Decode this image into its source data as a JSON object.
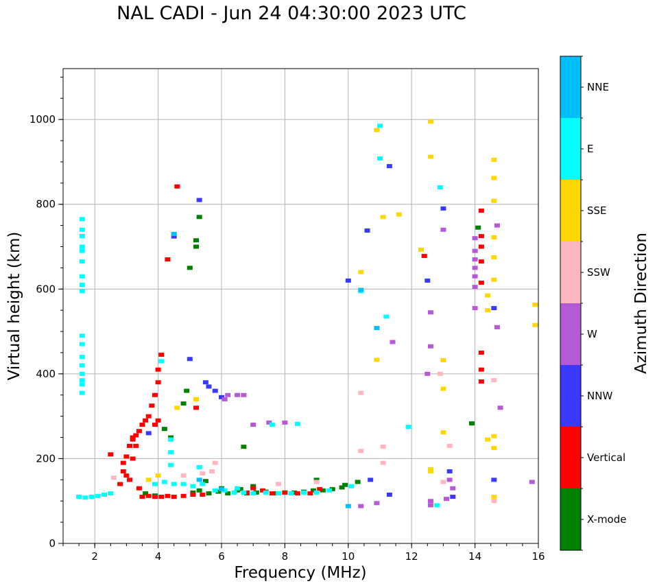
{
  "chart_data": {
    "type": "scatter",
    "title": "NAL CADI - Jun 24 04:30:00 2023 UTC",
    "xlabel": "Frequency (MHz)",
    "ylabel": "Virtual height (km)",
    "xlim": [
      1,
      16
    ],
    "ylim": [
      0,
      1120
    ],
    "xticks": [
      2,
      4,
      6,
      8,
      10,
      12,
      14,
      16
    ],
    "yticks": [
      0,
      200,
      400,
      600,
      800,
      1000
    ],
    "grid": true,
    "colorbar": {
      "label": "Azimuth Direction",
      "categories": [
        {
          "name": "X-mode",
          "color": "#008000"
        },
        {
          "name": "Vertical",
          "color": "#ff0000"
        },
        {
          "name": "NNW",
          "color": "#3a3aff"
        },
        {
          "name": "W",
          "color": "#b659d6"
        },
        {
          "name": "SSW",
          "color": "#ffb6c1"
        },
        {
          "name": "SSE",
          "color": "#ffd700"
        },
        {
          "name": "E",
          "color": "#00ffff"
        },
        {
          "name": "NNE",
          "color": "#00bfff"
        }
      ]
    },
    "series": [
      {
        "name": "X-mode",
        "points": [
          [
            5.1,
            120
          ],
          [
            5.3,
            125
          ],
          [
            5.6,
            118
          ],
          [
            5.9,
            122
          ],
          [
            6.2,
            118
          ],
          [
            6.5,
            125
          ],
          [
            6.8,
            118
          ],
          [
            7.1,
            120
          ],
          [
            7.4,
            122
          ],
          [
            7.7,
            118
          ],
          [
            8.0,
            120
          ],
          [
            8.3,
            120
          ],
          [
            8.6,
            122
          ],
          [
            8.9,
            125
          ],
          [
            9.2,
            125
          ],
          [
            9.5,
            128
          ],
          [
            9.8,
            132
          ],
          [
            9.9,
            138
          ],
          [
            10.3,
            145
          ],
          [
            5.2,
            700
          ],
          [
            5.2,
            715
          ],
          [
            5.3,
            770
          ],
          [
            5.0,
            650
          ],
          [
            4.9,
            360
          ],
          [
            4.8,
            330
          ],
          [
            4.4,
            250
          ],
          [
            4.2,
            270
          ],
          [
            6.7,
            228
          ],
          [
            6.0,
            130
          ],
          [
            6.6,
            128
          ],
          [
            7.0,
            135
          ],
          [
            9.0,
            150
          ],
          [
            14.1,
            745
          ],
          [
            13.9,
            283
          ],
          [
            3.6,
            118
          ],
          [
            3.9,
            113
          ],
          [
            5.5,
            147
          ]
        ]
      },
      {
        "name": "Vertical",
        "points": [
          [
            3.1,
            230
          ],
          [
            3.2,
            245
          ],
          [
            3.3,
            255
          ],
          [
            3.4,
            265
          ],
          [
            3.5,
            280
          ],
          [
            3.6,
            290
          ],
          [
            3.7,
            300
          ],
          [
            3.8,
            325
          ],
          [
            3.9,
            350
          ],
          [
            4.0,
            380
          ],
          [
            4.0,
            410
          ],
          [
            4.1,
            445
          ],
          [
            4.0,
            290
          ],
          [
            3.9,
            280
          ],
          [
            3.0,
            160
          ],
          [
            3.1,
            150
          ],
          [
            2.9,
            170
          ],
          [
            2.8,
            140
          ],
          [
            3.5,
            110
          ],
          [
            3.7,
            112
          ],
          [
            3.9,
            110
          ],
          [
            4.1,
            110
          ],
          [
            4.3,
            112
          ],
          [
            4.5,
            110
          ],
          [
            4.8,
            112
          ],
          [
            5.1,
            115
          ],
          [
            5.4,
            115
          ],
          [
            6.8,
            120
          ],
          [
            7.0,
            130
          ],
          [
            7.3,
            125
          ],
          [
            7.6,
            118
          ],
          [
            8.0,
            120
          ],
          [
            8.4,
            118
          ],
          [
            8.8,
            118
          ],
          [
            9.1,
            128
          ],
          [
            4.6,
            842
          ],
          [
            3.3,
            230
          ],
          [
            14.2,
            615
          ],
          [
            14.2,
            665
          ],
          [
            14.2,
            725
          ],
          [
            14.2,
            700
          ],
          [
            14.2,
            785
          ],
          [
            14.2,
            450
          ],
          [
            14.2,
            410
          ],
          [
            14.2,
            382
          ],
          [
            12.4,
            678
          ],
          [
            3.0,
            205
          ],
          [
            2.9,
            190
          ],
          [
            3.2,
            250
          ],
          [
            2.5,
            210
          ],
          [
            4.3,
            670
          ],
          [
            5.2,
            320
          ],
          [
            3.4,
            130
          ],
          [
            3.2,
            200
          ]
        ]
      },
      {
        "name": "NNW",
        "points": [
          [
            5.5,
            380
          ],
          [
            5.6,
            370
          ],
          [
            5.8,
            360
          ],
          [
            6.0,
            345
          ],
          [
            5.0,
            435
          ],
          [
            10.0,
            620
          ],
          [
            10.6,
            738
          ],
          [
            11.3,
            890
          ],
          [
            13.0,
            790
          ],
          [
            12.5,
            620
          ],
          [
            13.2,
            170
          ],
          [
            13.3,
            110
          ],
          [
            14.6,
            555
          ],
          [
            11.3,
            115
          ],
          [
            10.7,
            150
          ],
          [
            4.5,
            724
          ],
          [
            5.3,
            810
          ],
          [
            14.6,
            150
          ],
          [
            3.7,
            260
          ]
        ]
      },
      {
        "name": "W",
        "points": [
          [
            6.2,
            350
          ],
          [
            6.5,
            350
          ],
          [
            6.7,
            350
          ],
          [
            7.0,
            280
          ],
          [
            7.5,
            285
          ],
          [
            8.0,
            285
          ],
          [
            12.6,
            545
          ],
          [
            12.6,
            465
          ],
          [
            12.5,
            400
          ],
          [
            13.0,
            740
          ],
          [
            14.0,
            720
          ],
          [
            14.0,
            690
          ],
          [
            14.0,
            670
          ],
          [
            14.0,
            650
          ],
          [
            14.0,
            630
          ],
          [
            14.0,
            605
          ],
          [
            14.0,
            555
          ],
          [
            14.7,
            750
          ],
          [
            14.7,
            510
          ],
          [
            13.2,
            150
          ],
          [
            13.3,
            130
          ],
          [
            13.1,
            105
          ],
          [
            12.6,
            100
          ],
          [
            12.6,
            90
          ],
          [
            11.4,
            475
          ],
          [
            10.4,
            88
          ],
          [
            10.9,
            95
          ],
          [
            15.8,
            145
          ],
          [
            14.8,
            320
          ],
          [
            6.1,
            340
          ]
        ]
      },
      {
        "name": "SSW",
        "points": [
          [
            5.8,
            190
          ],
          [
            5.7,
            170
          ],
          [
            5.4,
            165
          ],
          [
            10.4,
            355
          ],
          [
            10.4,
            218
          ],
          [
            11.1,
            228
          ],
          [
            11.1,
            190
          ],
          [
            12.9,
            400
          ],
          [
            13.2,
            230
          ],
          [
            13.0,
            145
          ],
          [
            14.6,
            385
          ],
          [
            14.6,
            100
          ],
          [
            2.6,
            155
          ],
          [
            4.8,
            160
          ],
          [
            9.0,
            145
          ],
          [
            7.8,
            140
          ]
        ]
      },
      {
        "name": "SSE",
        "points": [
          [
            12.6,
            995
          ],
          [
            12.6,
            912
          ],
          [
            12.3,
            693
          ],
          [
            13.0,
            432
          ],
          [
            13.0,
            365
          ],
          [
            13.0,
            262
          ],
          [
            12.6,
            175
          ],
          [
            12.6,
            170
          ],
          [
            14.6,
            905
          ],
          [
            14.6,
            862
          ],
          [
            14.6,
            808
          ],
          [
            14.6,
            722
          ],
          [
            14.6,
            675
          ],
          [
            14.6,
            622
          ],
          [
            14.4,
            585
          ],
          [
            14.4,
            550
          ],
          [
            14.6,
            253
          ],
          [
            14.6,
            225
          ],
          [
            14.4,
            245
          ],
          [
            14.6,
            110
          ],
          [
            15.9,
            563
          ],
          [
            15.9,
            515
          ],
          [
            10.9,
            975
          ],
          [
            10.9,
            433
          ],
          [
            11.1,
            770
          ],
          [
            11.6,
            776
          ],
          [
            10.4,
            640
          ],
          [
            3.7,
            150
          ],
          [
            4.0,
            160
          ],
          [
            5.2,
            340
          ],
          [
            4.6,
            320
          ]
        ]
      },
      {
        "name": "E",
        "points": [
          [
            1.6,
            765
          ],
          [
            1.6,
            740
          ],
          [
            1.6,
            725
          ],
          [
            1.6,
            700
          ],
          [
            1.6,
            690
          ],
          [
            1.6,
            665
          ],
          [
            1.6,
            630
          ],
          [
            1.6,
            610
          ],
          [
            1.6,
            595
          ],
          [
            1.6,
            490
          ],
          [
            1.6,
            470
          ],
          [
            1.6,
            440
          ],
          [
            1.6,
            420
          ],
          [
            1.6,
            400
          ],
          [
            1.6,
            385
          ],
          [
            1.6,
            375
          ],
          [
            1.6,
            355
          ],
          [
            1.5,
            110
          ],
          [
            1.7,
            108
          ],
          [
            1.9,
            110
          ],
          [
            2.1,
            112
          ],
          [
            2.3,
            115
          ],
          [
            2.5,
            118
          ],
          [
            3.9,
            140
          ],
          [
            4.2,
            145
          ],
          [
            4.5,
            140
          ],
          [
            4.8,
            140
          ],
          [
            5.1,
            135
          ],
          [
            5.4,
            140
          ],
          [
            5.8,
            125
          ],
          [
            6.1,
            125
          ],
          [
            6.4,
            120
          ],
          [
            6.7,
            120
          ],
          [
            7.0,
            118
          ],
          [
            7.4,
            120
          ],
          [
            7.8,
            118
          ],
          [
            8.2,
            118
          ],
          [
            8.6,
            120
          ],
          [
            9.0,
            120
          ],
          [
            9.4,
            125
          ],
          [
            10.1,
            135
          ],
          [
            4.4,
            245
          ],
          [
            4.4,
            215
          ],
          [
            4.4,
            185
          ],
          [
            4.1,
            430
          ],
          [
            11.0,
            908
          ],
          [
            11.0,
            985
          ],
          [
            11.2,
            535
          ],
          [
            10.4,
            595
          ],
          [
            11.9,
            275
          ],
          [
            12.9,
            840
          ],
          [
            12.8,
            90
          ],
          [
            8.4,
            282
          ],
          [
            7.6,
            280
          ],
          [
            5.3,
            180
          ],
          [
            6.5,
            130
          ]
        ]
      },
      {
        "name": "NNE",
        "points": [
          [
            10.9,
            508
          ],
          [
            10.4,
            598
          ],
          [
            10.0,
            88
          ],
          [
            5.3,
            150
          ],
          [
            4.5,
            730
          ],
          [
            6.0,
            128
          ]
        ]
      }
    ]
  }
}
